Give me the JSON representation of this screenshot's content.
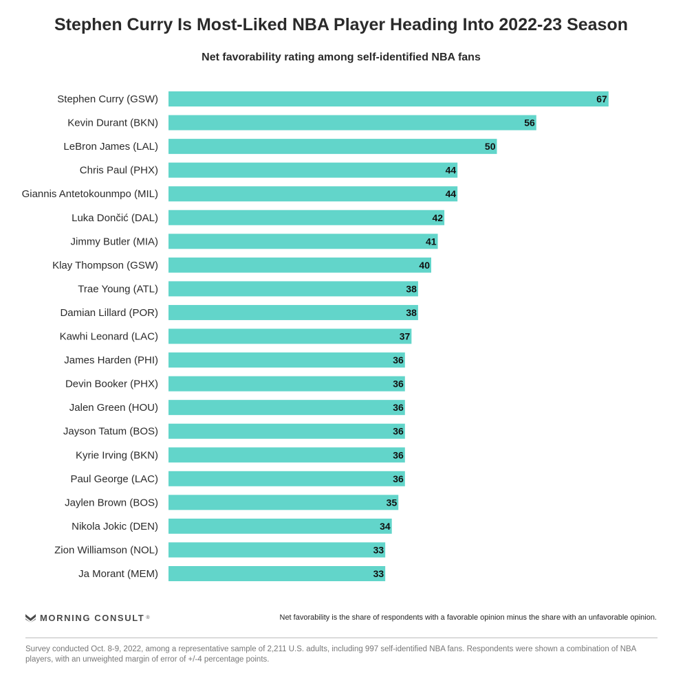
{
  "chart_data": {
    "type": "bar",
    "orientation": "horizontal",
    "title": "Stephen Curry Is Most-Liked NBA Player Heading Into 2022-23 Season",
    "subtitle": "Net favorability rating among self-identified NBA fans",
    "xlabel": "",
    "ylabel": "",
    "xlim": [
      0,
      70
    ],
    "grid": false,
    "bar_color": "#62d5ca",
    "categories": [
      "Stephen Curry (GSW)",
      "Kevin Durant (BKN)",
      "LeBron James (LAL)",
      "Chris Paul (PHX)",
      "Giannis Antetokounmpo (MIL)",
      "Luka Dončić (DAL)",
      "Jimmy Butler (MIA)",
      "Klay Thompson (GSW)",
      "Trae Young (ATL)",
      "Damian Lillard (POR)",
      "Kawhi Leonard (LAC)",
      "James Harden (PHI)",
      "Devin Booker (PHX)",
      "Jalen Green (HOU)",
      "Jayson Tatum (BOS)",
      "Kyrie Irving (BKN)",
      "Paul George (LAC)",
      "Jaylen Brown (BOS)",
      "Nikola Jokic (DEN)",
      "Zion Williamson (NOL)",
      "Ja Morant (MEM)"
    ],
    "values": [
      67,
      56,
      50,
      44,
      44,
      42,
      41,
      40,
      38,
      38,
      37,
      36,
      36,
      36,
      36,
      36,
      36,
      35,
      34,
      33,
      33
    ]
  },
  "branding": {
    "logo_text": "MORNING CONSULT",
    "logo_mark": "®",
    "logo_icon": "morning-consult-m-icon",
    "logo_color": "#4a4a4a"
  },
  "notes": {
    "definition": "Net favorability is the share of respondents with a favorable opinion minus the share with an unfavorable opinion.",
    "methodology": "Survey conducted Oct. 8-9, 2022, among a representative sample of 2,211 U.S. adults, including 997 self-identified NBA fans. Respondents were shown a combination of NBA players, with an unweighted margin of error of +/-4 percentage points."
  }
}
